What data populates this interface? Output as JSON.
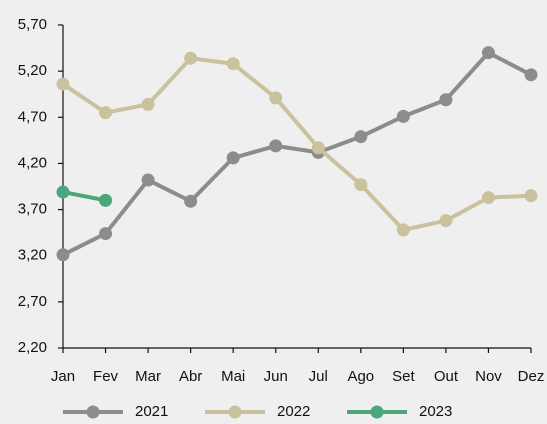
{
  "chart_data": {
    "type": "line",
    "categories": [
      "Jan",
      "Fev",
      "Mar",
      "Abr",
      "Mai",
      "Jun",
      "Jul",
      "Ago",
      "Set",
      "Out",
      "Nov",
      "Dez"
    ],
    "series": [
      {
        "name": "2021",
        "color": "#8c8c8c",
        "values": [
          3.21,
          3.44,
          4.02,
          3.79,
          4.26,
          4.39,
          4.32,
          4.49,
          4.71,
          4.89,
          5.4,
          5.16
        ]
      },
      {
        "name": "2022",
        "color": "#c9c29c",
        "values": [
          5.06,
          4.75,
          4.84,
          5.34,
          5.28,
          4.91,
          4.37,
          3.97,
          3.48,
          3.58,
          3.83,
          3.85
        ]
      },
      {
        "name": "2023",
        "color": "#4aa77a",
        "values": [
          3.89,
          3.8,
          null,
          null,
          null,
          null,
          null,
          null,
          null,
          null,
          null,
          null
        ]
      }
    ],
    "ylim": [
      2.2,
      5.7
    ],
    "yticks": [
      {
        "value": 2.2,
        "label": "2,20"
      },
      {
        "value": 2.7,
        "label": "2,70"
      },
      {
        "value": 3.2,
        "label": "3,20"
      },
      {
        "value": 3.7,
        "label": "3,70"
      },
      {
        "value": 4.2,
        "label": "4,20"
      },
      {
        "value": 4.7,
        "label": "4,70"
      },
      {
        "value": 5.2,
        "label": "5,20"
      },
      {
        "value": 5.7,
        "label": "5,70"
      }
    ],
    "grid": false,
    "legend": "bottom"
  }
}
